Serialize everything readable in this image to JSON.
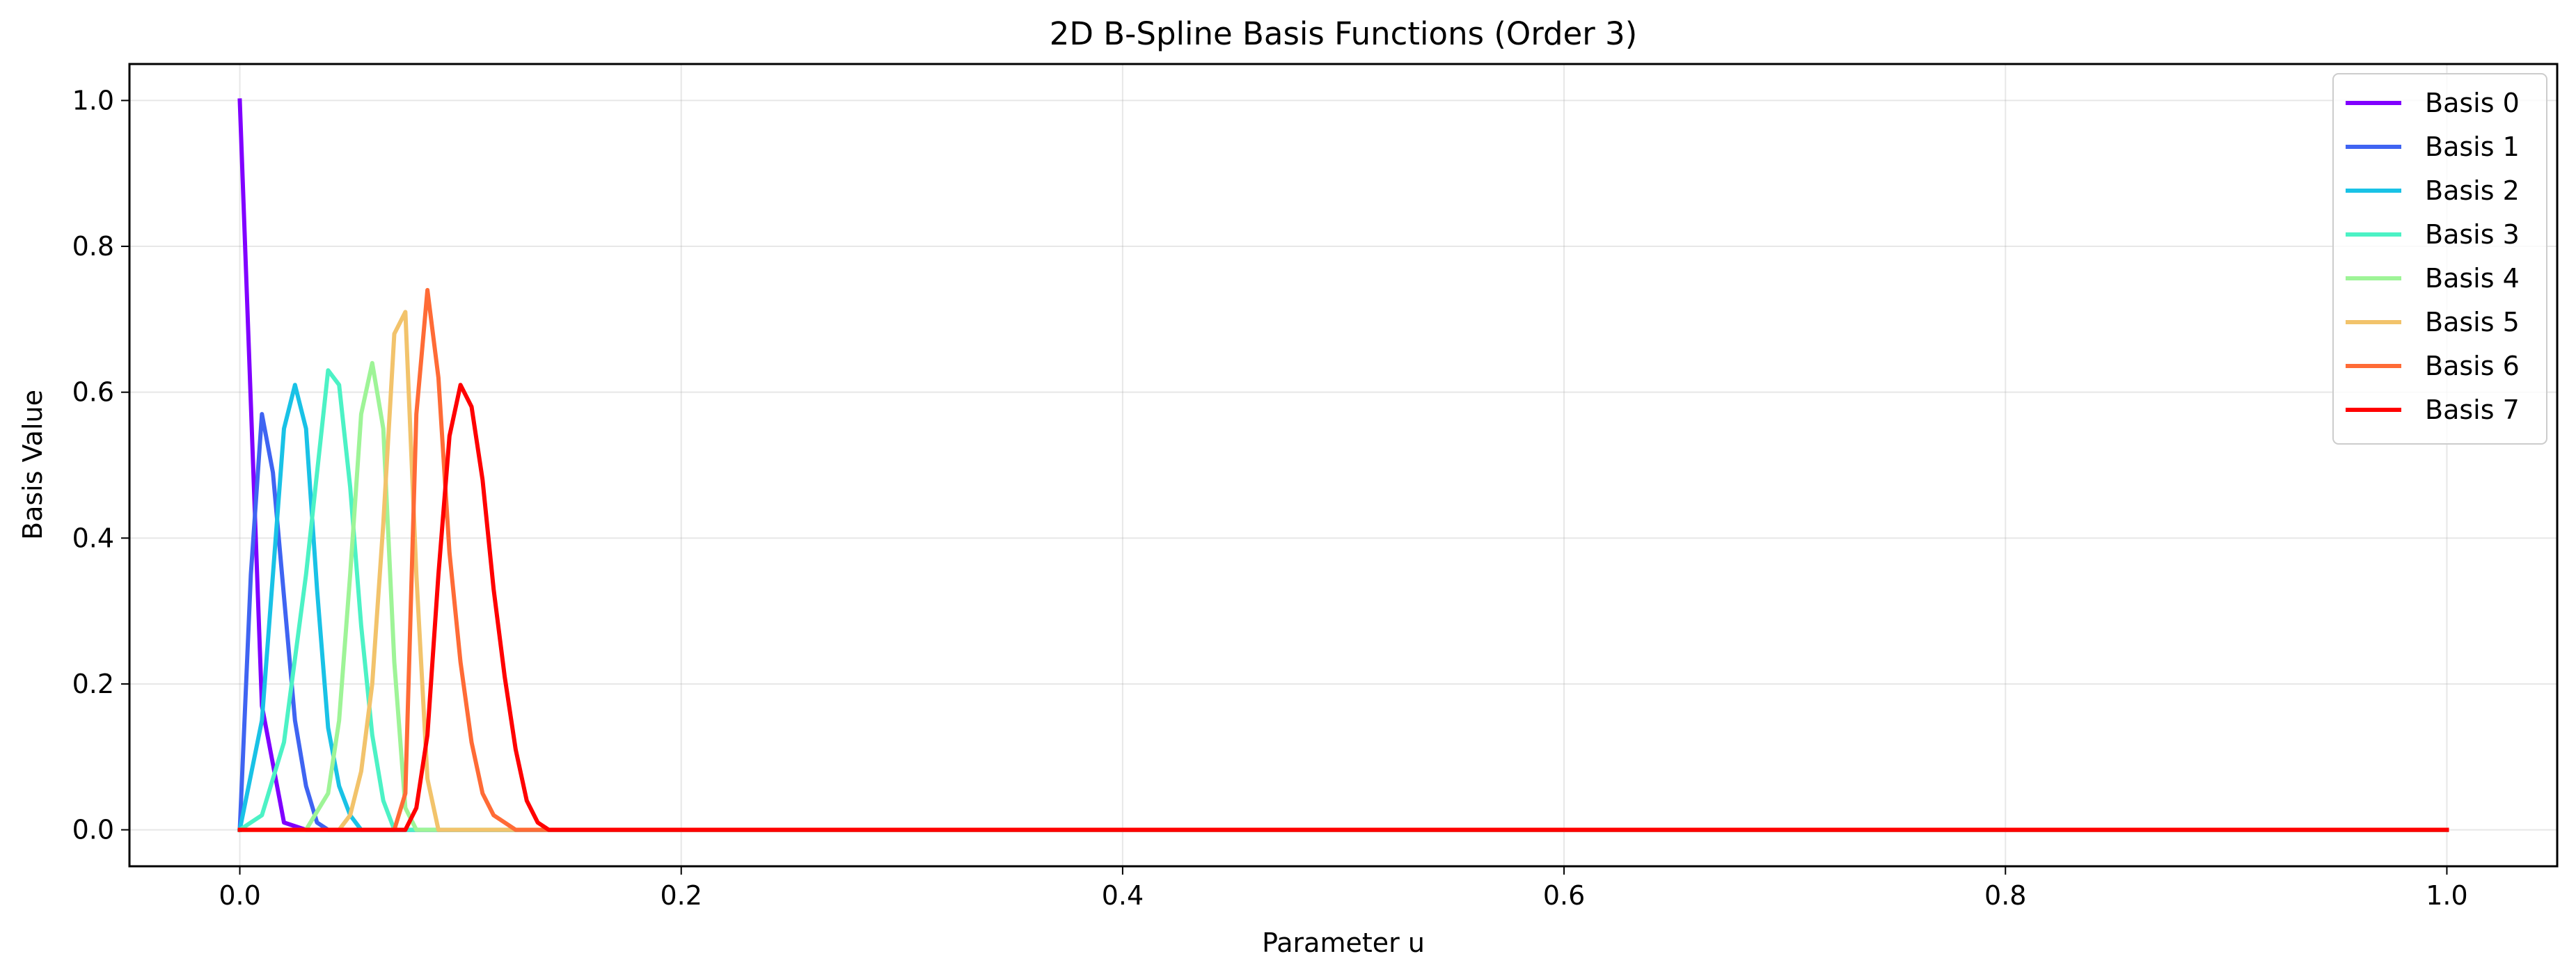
{
  "chart_data": {
    "type": "line",
    "title": "2D B-Spline Basis Functions (Order 3)",
    "xlabel": "Parameter u",
    "ylabel": "Basis Value",
    "xlim": [
      -0.05,
      1.05
    ],
    "ylim": [
      -0.05,
      1.05
    ],
    "xticks": [
      0.0,
      0.2,
      0.4,
      0.6,
      0.8,
      1.0
    ],
    "xtick_labels": [
      "0.0",
      "0.2",
      "0.4",
      "0.6",
      "0.8",
      "1.0"
    ],
    "yticks": [
      0.0,
      0.2,
      0.4,
      0.6,
      0.8,
      1.0
    ],
    "ytick_labels": [
      "0.0",
      "0.2",
      "0.4",
      "0.6",
      "0.8",
      "1.0"
    ],
    "grid": true,
    "legend_position": "top-right",
    "series": [
      {
        "name": "Basis 0",
        "color": "#8000ff",
        "x": [
          0.0,
          0.01,
          0.02,
          0.03,
          1.0
        ],
        "y": [
          1.0,
          0.17,
          0.01,
          0.0,
          0.0
        ]
      },
      {
        "name": "Basis 1",
        "color": "#3f64f2",
        "x": [
          0.0,
          0.005,
          0.01,
          0.015,
          0.02,
          0.025,
          0.03,
          0.035,
          0.04,
          0.05,
          1.0
        ],
        "y": [
          0.0,
          0.35,
          0.57,
          0.49,
          0.32,
          0.15,
          0.06,
          0.01,
          0.0,
          0.0,
          0.0
        ]
      },
      {
        "name": "Basis 2",
        "color": "#19c2e6",
        "x": [
          0.0,
          0.01,
          0.02,
          0.025,
          0.03,
          0.035,
          0.04,
          0.045,
          0.05,
          0.055,
          0.06,
          1.0
        ],
        "y": [
          0.0,
          0.15,
          0.55,
          0.61,
          0.55,
          0.33,
          0.14,
          0.06,
          0.02,
          0.0,
          0.0,
          0.0
        ]
      },
      {
        "name": "Basis 3",
        "color": "#4cf2c5",
        "x": [
          0.0,
          0.01,
          0.02,
          0.03,
          0.04,
          0.045,
          0.05,
          0.055,
          0.06,
          0.065,
          0.07,
          0.075,
          1.0
        ],
        "y": [
          0.0,
          0.02,
          0.12,
          0.35,
          0.63,
          0.61,
          0.47,
          0.28,
          0.13,
          0.04,
          0.0,
          0.0,
          0.0
        ]
      },
      {
        "name": "Basis 4",
        "color": "#9ef497",
        "x": [
          0.0,
          0.03,
          0.04,
          0.045,
          0.05,
          0.055,
          0.06,
          0.065,
          0.07,
          0.075,
          0.08,
          0.09,
          1.0
        ],
        "y": [
          0.0,
          0.0,
          0.05,
          0.15,
          0.35,
          0.57,
          0.64,
          0.55,
          0.23,
          0.03,
          0.0,
          0.0,
          0.0
        ]
      },
      {
        "name": "Basis 5",
        "color": "#f2c36b",
        "x": [
          0.0,
          0.045,
          0.05,
          0.055,
          0.06,
          0.065,
          0.07,
          0.075,
          0.08,
          0.085,
          0.09,
          0.1,
          1.0
        ],
        "y": [
          0.0,
          0.0,
          0.02,
          0.08,
          0.2,
          0.42,
          0.68,
          0.71,
          0.35,
          0.07,
          0.0,
          0.0,
          0.0
        ]
      },
      {
        "name": "Basis 6",
        "color": "#ff6b36",
        "x": [
          0.0,
          0.07,
          0.075,
          0.08,
          0.085,
          0.09,
          0.095,
          0.1,
          0.105,
          0.11,
          0.115,
          0.12,
          0.125,
          0.13,
          0.135,
          0.14,
          1.0
        ],
        "y": [
          0.0,
          0.0,
          0.05,
          0.57,
          0.74,
          0.62,
          0.38,
          0.23,
          0.12,
          0.05,
          0.02,
          0.01,
          0.0,
          0.0,
          0.0,
          0.0,
          0.0
        ]
      },
      {
        "name": "Basis 7",
        "color": "#ff0000",
        "x": [
          0.0,
          0.075,
          0.08,
          0.085,
          0.09,
          0.095,
          0.1,
          0.105,
          0.11,
          0.115,
          0.12,
          0.125,
          0.13,
          0.135,
          0.14,
          1.0
        ],
        "y": [
          0.0,
          0.0,
          0.03,
          0.13,
          0.35,
          0.54,
          0.61,
          0.58,
          0.48,
          0.33,
          0.21,
          0.11,
          0.04,
          0.01,
          0.0,
          0.0
        ]
      }
    ]
  }
}
